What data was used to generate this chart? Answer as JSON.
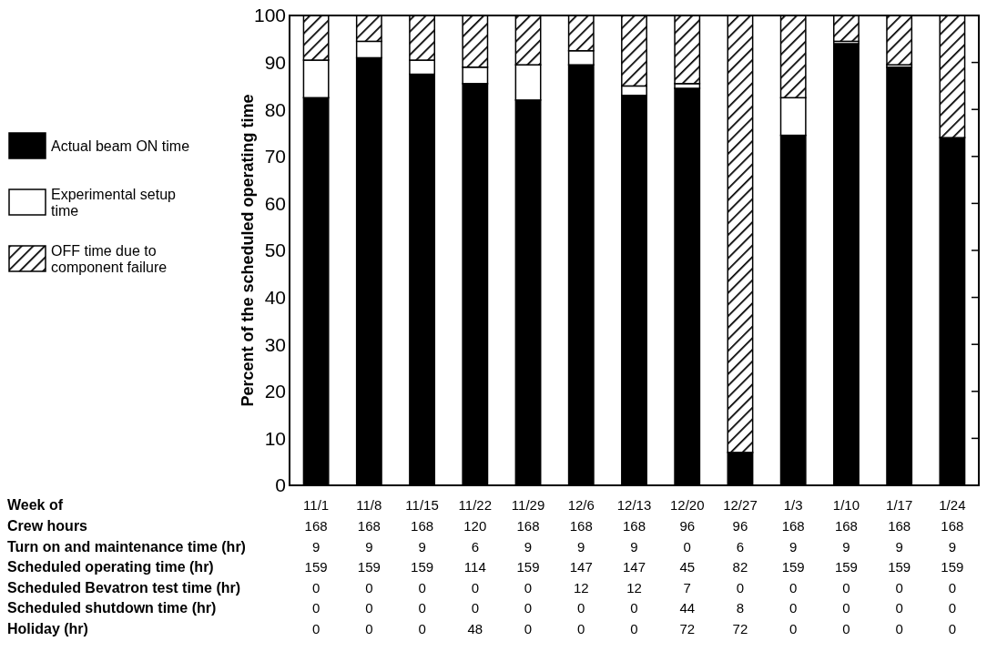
{
  "chart_data": {
    "type": "bar",
    "stacked": true,
    "ylabel": "Percent of the scheduled operating time",
    "categories": [
      "11/1",
      "11/8",
      "11/15",
      "11/22",
      "11/29",
      "12/6",
      "12/13",
      "12/20",
      "12/27",
      "1/3",
      "1/10",
      "1/17",
      "1/24"
    ],
    "series": [
      {
        "name": "Actual beam ON time",
        "color": "#000000",
        "values": [
          82.5,
          91,
          87.5,
          85.5,
          82,
          89.5,
          83,
          84.5,
          7,
          74.5,
          94,
          89,
          74
        ]
      },
      {
        "name": "Experimental setup time",
        "color": "#ffffff",
        "values": [
          8,
          3.5,
          3,
          3.5,
          7.5,
          3,
          2,
          1,
          0,
          8,
          0.5,
          0.5,
          0
        ]
      },
      {
        "name": "OFF time due to component failure",
        "color": "#000000",
        "values": [
          9.5,
          5.5,
          9.5,
          11,
          10.5,
          7.5,
          15,
          14.5,
          93,
          17.5,
          5.5,
          10.5,
          26
        ]
      }
    ],
    "ylim": [
      0,
      100
    ],
    "yticks": [
      0,
      10,
      20,
      30,
      40,
      50,
      60,
      70,
      80,
      90,
      100
    ],
    "legend": "left",
    "annotations": [
      "Week of",
      "Crew hours",
      "168",
      "168",
      "168",
      "120",
      "168",
      "168",
      "168",
      "96",
      "96",
      "168",
      "168",
      "168",
      "168",
      "Turn on and maintenance time (hr)",
      "9",
      "9",
      "9",
      "6",
      "9",
      "9",
      "9",
      "0",
      "6",
      "9",
      "9",
      "9",
      "9",
      "Scheduled operating time (hr)",
      "159",
      "159",
      "159",
      "114",
      "159",
      "147",
      "147",
      "45",
      "82",
      "159",
      "159",
      "159",
      "159",
      "Scheduled Bevatron test time (hr)",
      "0",
      "0",
      "0",
      "0",
      "0",
      "12",
      "12",
      "7",
      "0",
      "0",
      "0",
      "0",
      "0",
      "Scheduled shutdown time (hr)",
      "0",
      "0",
      "0",
      "0",
      "0",
      "0",
      "0",
      "44",
      "8",
      "0",
      "0",
      "0",
      "0",
      "Holiday (hr)",
      "0",
      "0",
      "0",
      "48",
      "0",
      "0",
      "0",
      "72",
      "72",
      "0",
      "0",
      "0",
      "0"
    ]
  }
}
